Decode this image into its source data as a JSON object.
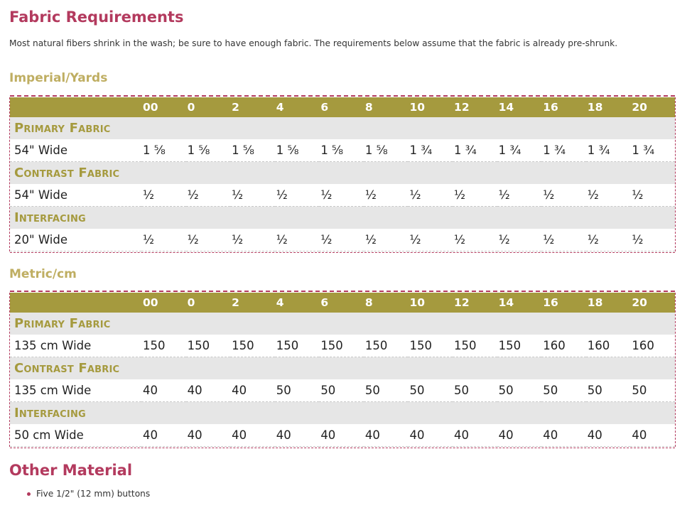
{
  "colors": {
    "title": "#b33a5e",
    "subtitle": "#bfae62",
    "header_bar": "#a59a3e",
    "category_text": "#a59a3e",
    "category_bg": "#e6e6e6",
    "border": "#b33a5e"
  },
  "fabric": {
    "title": "Fabric Requirements",
    "intro": "Most natural fibers shrink in the wash; be sure to have enough fabric. The requirements below assume that the fabric is already pre-shrunk."
  },
  "imperial": {
    "title": "Imperial/Yards",
    "sizes": [
      "00",
      "0",
      "2",
      "4",
      "6",
      "8",
      "10",
      "12",
      "14",
      "16",
      "18",
      "20"
    ],
    "groups": [
      {
        "category": "Primary Fabric",
        "label": "54\" Wide",
        "values": [
          "1 ⅝",
          "1 ⅝",
          "1 ⅝",
          "1 ⅝",
          "1 ⅝",
          "1 ⅝",
          "1 ¾",
          "1 ¾",
          "1 ¾",
          "1 ¾",
          "1 ¾",
          "1 ¾"
        ]
      },
      {
        "category": "Contrast Fabric",
        "label": "54\" Wide",
        "values": [
          "½",
          "½",
          "½",
          "½",
          "½",
          "½",
          "½",
          "½",
          "½",
          "½",
          "½",
          "½"
        ]
      },
      {
        "category": "Interfacing",
        "label": "20\" Wide",
        "values": [
          "½",
          "½",
          "½",
          "½",
          "½",
          "½",
          "½",
          "½",
          "½",
          "½",
          "½",
          "½"
        ]
      }
    ]
  },
  "metric": {
    "title": "Metric/cm",
    "sizes": [
      "00",
      "0",
      "2",
      "4",
      "6",
      "8",
      "10",
      "12",
      "14",
      "16",
      "18",
      "20"
    ],
    "groups": [
      {
        "category": "Primary Fabric",
        "label": "135 cm Wide",
        "values": [
          "150",
          "150",
          "150",
          "150",
          "150",
          "150",
          "150",
          "150",
          "150",
          "160",
          "160",
          "160"
        ]
      },
      {
        "category": "Contrast Fabric",
        "label": "135 cm Wide",
        "values": [
          "40",
          "40",
          "40",
          "50",
          "50",
          "50",
          "50",
          "50",
          "50",
          "50",
          "50",
          "50"
        ]
      },
      {
        "category": "Interfacing",
        "label": "50 cm Wide",
        "values": [
          "40",
          "40",
          "40",
          "40",
          "40",
          "40",
          "40",
          "40",
          "40",
          "40",
          "40",
          "40"
        ]
      }
    ]
  },
  "other": {
    "title": "Other Material",
    "items": [
      "Five 1/2\" (12 mm) buttons"
    ]
  }
}
